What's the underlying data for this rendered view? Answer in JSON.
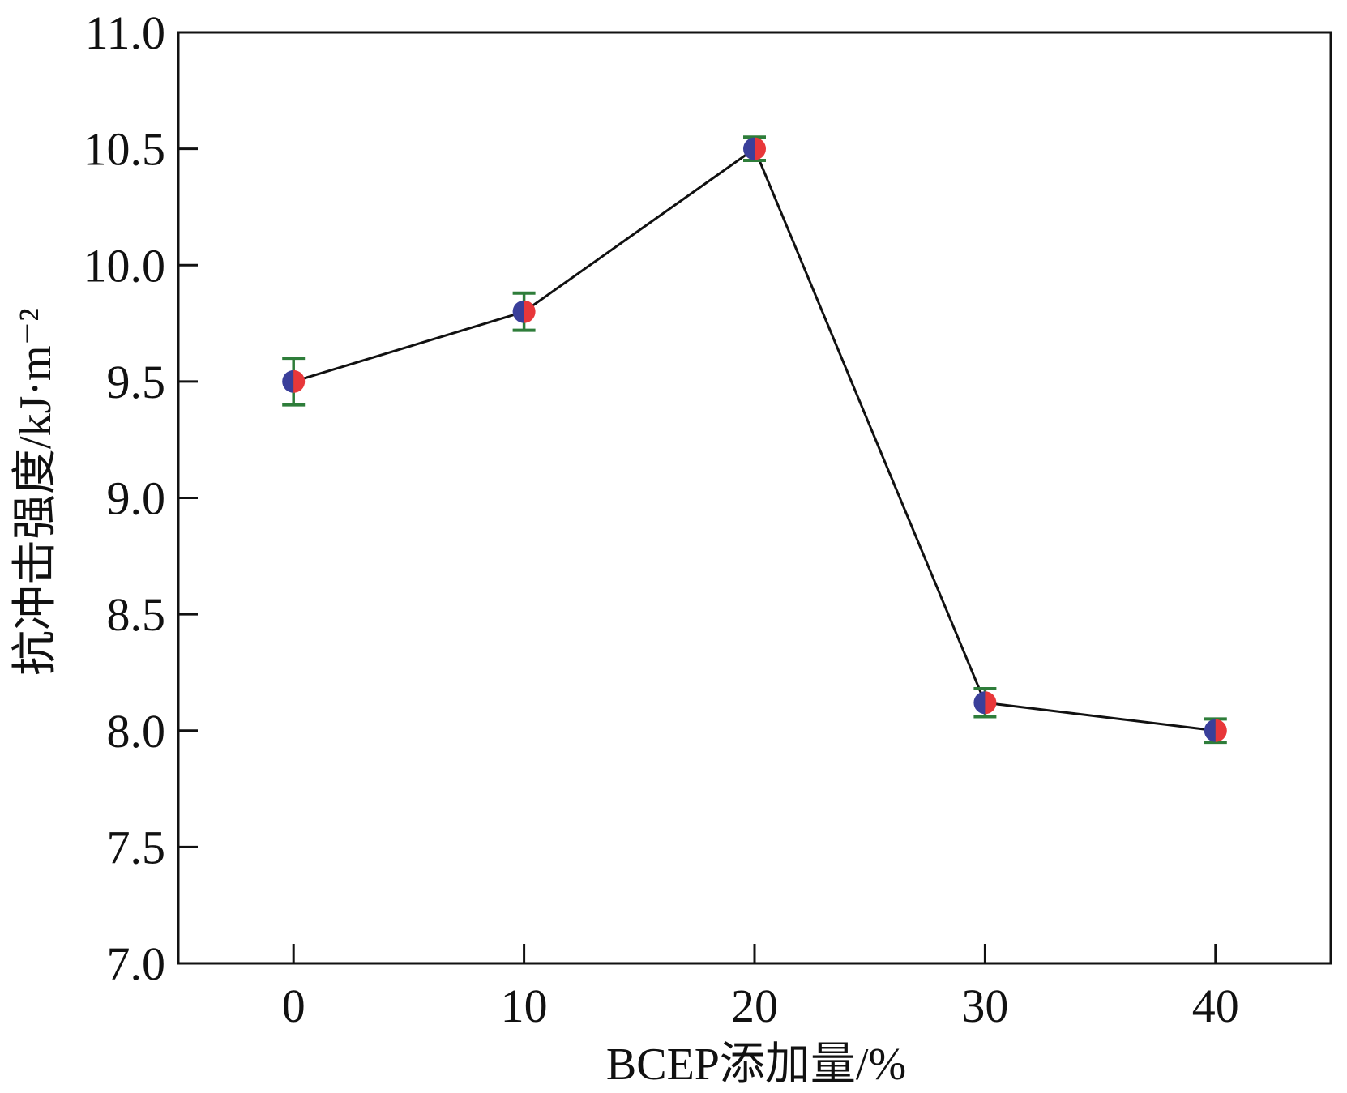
{
  "chart_data": {
    "type": "scatter",
    "title": "",
    "xlabel": "BCEP添加量/%",
    "ylabel": "抗冲击强度/kJ·m⁻²",
    "xlim": [
      -5,
      45
    ],
    "ylim": [
      7.0,
      11.0
    ],
    "x_ticks": [
      0,
      10,
      20,
      30,
      40
    ],
    "y_ticks": [
      7.0,
      7.5,
      8.0,
      8.5,
      9.0,
      9.5,
      10.0,
      10.5,
      11.0
    ],
    "x_tick_labels": [
      "0",
      "10",
      "20",
      "30",
      "40"
    ],
    "y_tick_labels": [
      "7.0",
      "7.5",
      "8.0",
      "8.5",
      "9.0",
      "9.5",
      "10.0",
      "10.5",
      "11.0"
    ],
    "grid": false,
    "legend": "none",
    "series": [
      {
        "x": [
          0,
          10,
          20,
          30,
          40
        ],
        "y": [
          9.5,
          9.8,
          10.5,
          8.12,
          8.0
        ],
        "error": [
          0.1,
          0.08,
          0.05,
          0.06,
          0.05
        ]
      }
    ],
    "colors": {
      "line": "#111111",
      "marker_left": "#3a3f9a",
      "marker_right": "#e8373a",
      "error_bar": "#2e7d3a",
      "axis": "#111111"
    }
  }
}
